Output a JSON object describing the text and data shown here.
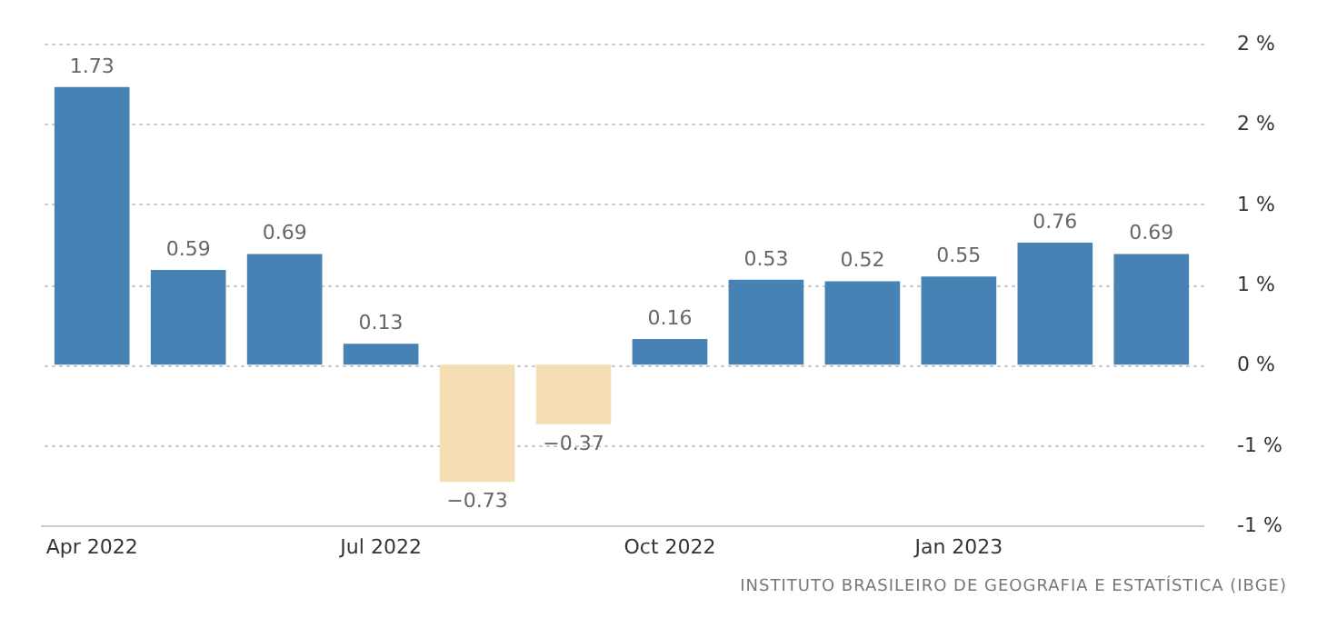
{
  "chart_data": {
    "type": "bar",
    "categories": [
      "Apr 2022",
      null,
      null,
      "Jul 2022",
      null,
      null,
      "Oct 2022",
      null,
      null,
      "Jan 2023",
      null,
      null
    ],
    "values": [
      1.73,
      0.59,
      0.69,
      0.13,
      -0.73,
      -0.37,
      0.16,
      0.53,
      0.52,
      0.55,
      0.76,
      0.69
    ],
    "colors": [
      "#4682b4",
      "#4682b4",
      "#4682b4",
      "#4682b4",
      "#f5deb3",
      "#f5deb3",
      "#4682b4",
      "#4682b4",
      "#4682b4",
      "#4682b4",
      "#4682b4",
      "#4682b4"
    ],
    "ylim": [
      -1,
      2
    ],
    "yticks": [
      {
        "value": 2,
        "label": "2 %"
      },
      {
        "value": 1.5,
        "label": "2 %"
      },
      {
        "value": 1,
        "label": "1 %"
      },
      {
        "value": 0.5,
        "label": "1 %"
      },
      {
        "value": 0,
        "label": "0 %"
      },
      {
        "value": -0.5,
        "label": "-1 %"
      },
      {
        "value": -1,
        "label": "-1 %"
      }
    ],
    "grid": "y",
    "data_labels": true,
    "annotations": [
      "INSTITUTO BRASILEIRO DE GEOGRAFIA E ESTATÍSTICA (IBGE)"
    ]
  }
}
